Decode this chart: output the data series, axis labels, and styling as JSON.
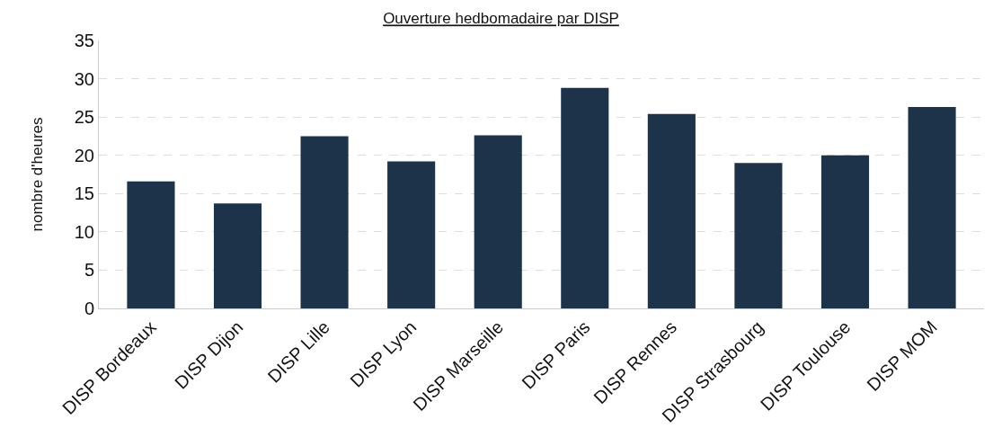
{
  "chart_data": {
    "type": "bar",
    "title": "Ouverture hedbomadaire par DISP",
    "ylabel": "nombre d'heures",
    "categories": [
      "DISP Bordeaux",
      "DISP Dijon",
      "DISP Lille",
      "DISP Lyon",
      "DISP Marseille",
      "DISP Paris",
      "DISP Rennes",
      "DISP Strasbourg",
      "DISP Toulouse",
      "DISP MOM"
    ],
    "values": [
      16.6,
      13.7,
      22.5,
      19.2,
      22.6,
      28.8,
      25.4,
      19.0,
      20.0,
      26.3
    ],
    "color": "#1c3349",
    "ylim": [
      0,
      35
    ],
    "yticks": [
      0,
      5,
      10,
      15,
      20,
      25,
      30,
      35
    ],
    "grid": "y"
  }
}
